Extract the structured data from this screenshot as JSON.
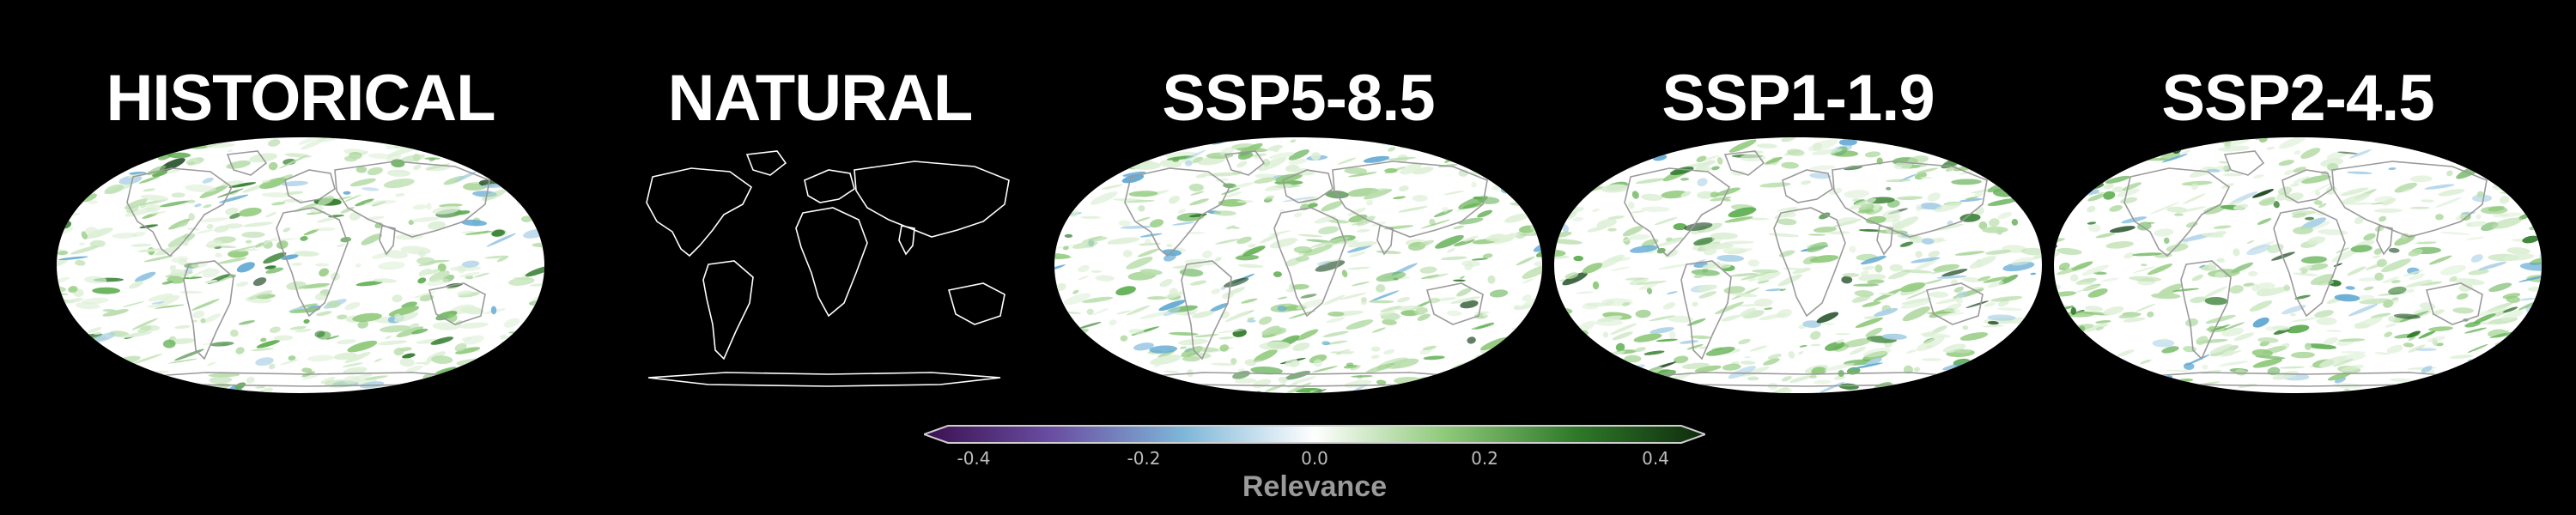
{
  "panels": [
    {
      "title": "HISTORICAL",
      "relevance_field": true
    },
    {
      "title": "NATURAL",
      "relevance_field": false
    },
    {
      "title": "SSP5-8.5",
      "relevance_field": true
    },
    {
      "title": "SSP1-1.9",
      "relevance_field": true
    },
    {
      "title": "SSP2-4.5",
      "relevance_field": true
    }
  ],
  "colorbar": {
    "label": "Relevance",
    "ticks": [
      "-0.4",
      "-0.2",
      "0.0",
      "0.2",
      "0.4"
    ],
    "range": [
      -0.4,
      0.4
    ],
    "colors": [
      "#3b0f4f",
      "#6a4fa3",
      "#7fb7d8",
      "#ffffff",
      "#8fc97a",
      "#2f7a2a",
      "#0f2a0d"
    ]
  },
  "colors": {
    "background": "#000000",
    "map_fill": "#ffffff",
    "coastline_gray": "#9a9a9a",
    "coastline_white": "#ffffff",
    "positive_relevance": "#2e7d32",
    "negative_relevance": "#5fa8d3"
  }
}
